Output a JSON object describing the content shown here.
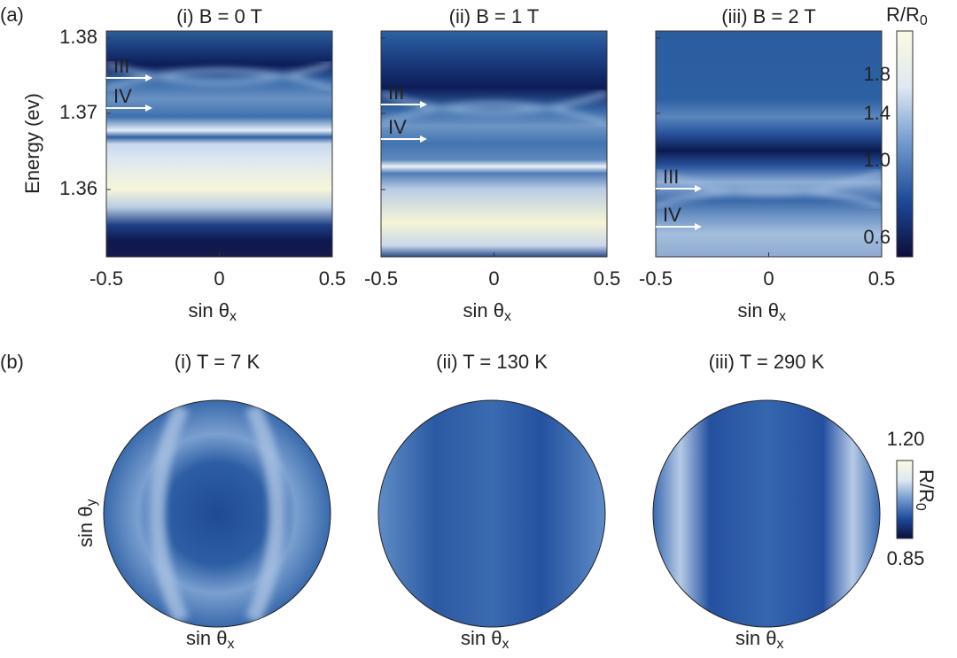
{
  "label_a": "(a)",
  "label_b": "(b)",
  "panel_a": {
    "y_label": "Energy (ev)",
    "y_ticks": [
      "1.38",
      "1.37",
      "1.36"
    ],
    "x_ticks": [
      "-0.5",
      "0",
      "0.5"
    ],
    "x_label": {
      "text": "sin θ",
      "sub": "x"
    },
    "plots": [
      {
        "title": "(i) B = 0 T",
        "markers": [
          "III",
          "IV"
        ]
      },
      {
        "title": "(ii) B = 1 T",
        "markers": [
          "III",
          "IV"
        ]
      },
      {
        "title": "(iii) B = 2 T",
        "markers": [
          "III",
          "IV"
        ]
      }
    ],
    "colorbar": {
      "title": {
        "text": "R/R",
        "sub": "0"
      },
      "ticks": [
        "1.8",
        "1.4",
        "1.0",
        "0.6"
      ]
    }
  },
  "panel_b": {
    "y_label": {
      "text": "sin θ",
      "sub": "y"
    },
    "x_label": {
      "text": "sin θ",
      "sub": "x"
    },
    "plots": [
      {
        "title": "(i) T = 7 K"
      },
      {
        "title": "(ii) T = 130 K"
      },
      {
        "title": "(iii) T = 290 K"
      }
    ],
    "colorbar": {
      "top": "1.20",
      "bottom": "0.85",
      "title": {
        "text": "R/R",
        "sub": "0"
      }
    }
  }
}
